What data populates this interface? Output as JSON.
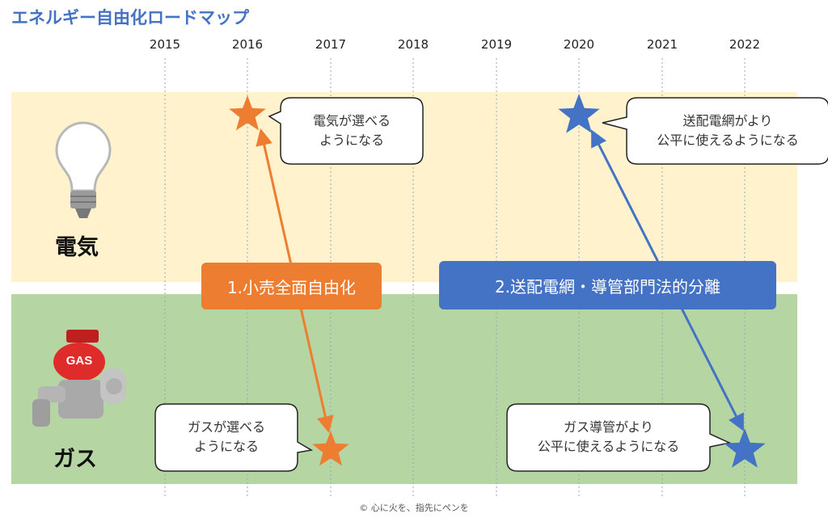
{
  "title": "エネルギー自由化ロードマップ",
  "years": [
    "2015",
    "2016",
    "2017",
    "2018",
    "2019",
    "2020",
    "2021",
    "2022"
  ],
  "rows": {
    "electricity": {
      "label": "電気",
      "icon": "light-bulb-icon"
    },
    "gas": {
      "label": "ガス",
      "icon": "gas-valve-icon",
      "icon_text": "GAS"
    }
  },
  "callouts": {
    "elec_2016": {
      "line1": "電気が選べる",
      "line2": "ようになる"
    },
    "elec_2020": {
      "line1": "送配電網がより",
      "line2": "公平に使えるようになる"
    },
    "gas_2017": {
      "line1": "ガスが選べる",
      "line2": "ようになる"
    },
    "gas_2022": {
      "line1": "ガス導管がより",
      "line2": "公平に使えるようになる"
    }
  },
  "reforms": {
    "retail": "1.小売全面自由化",
    "unbundling": "2.送配電網・導管部門法的分離"
  },
  "colors": {
    "title": "#4472C4",
    "electricity_band": "#FFF2CC",
    "gas_band": "#B5D6A3",
    "orange": "#ED7D31",
    "blue": "#4472C4"
  },
  "copyright": "© 心に火を、指先にペンを"
}
